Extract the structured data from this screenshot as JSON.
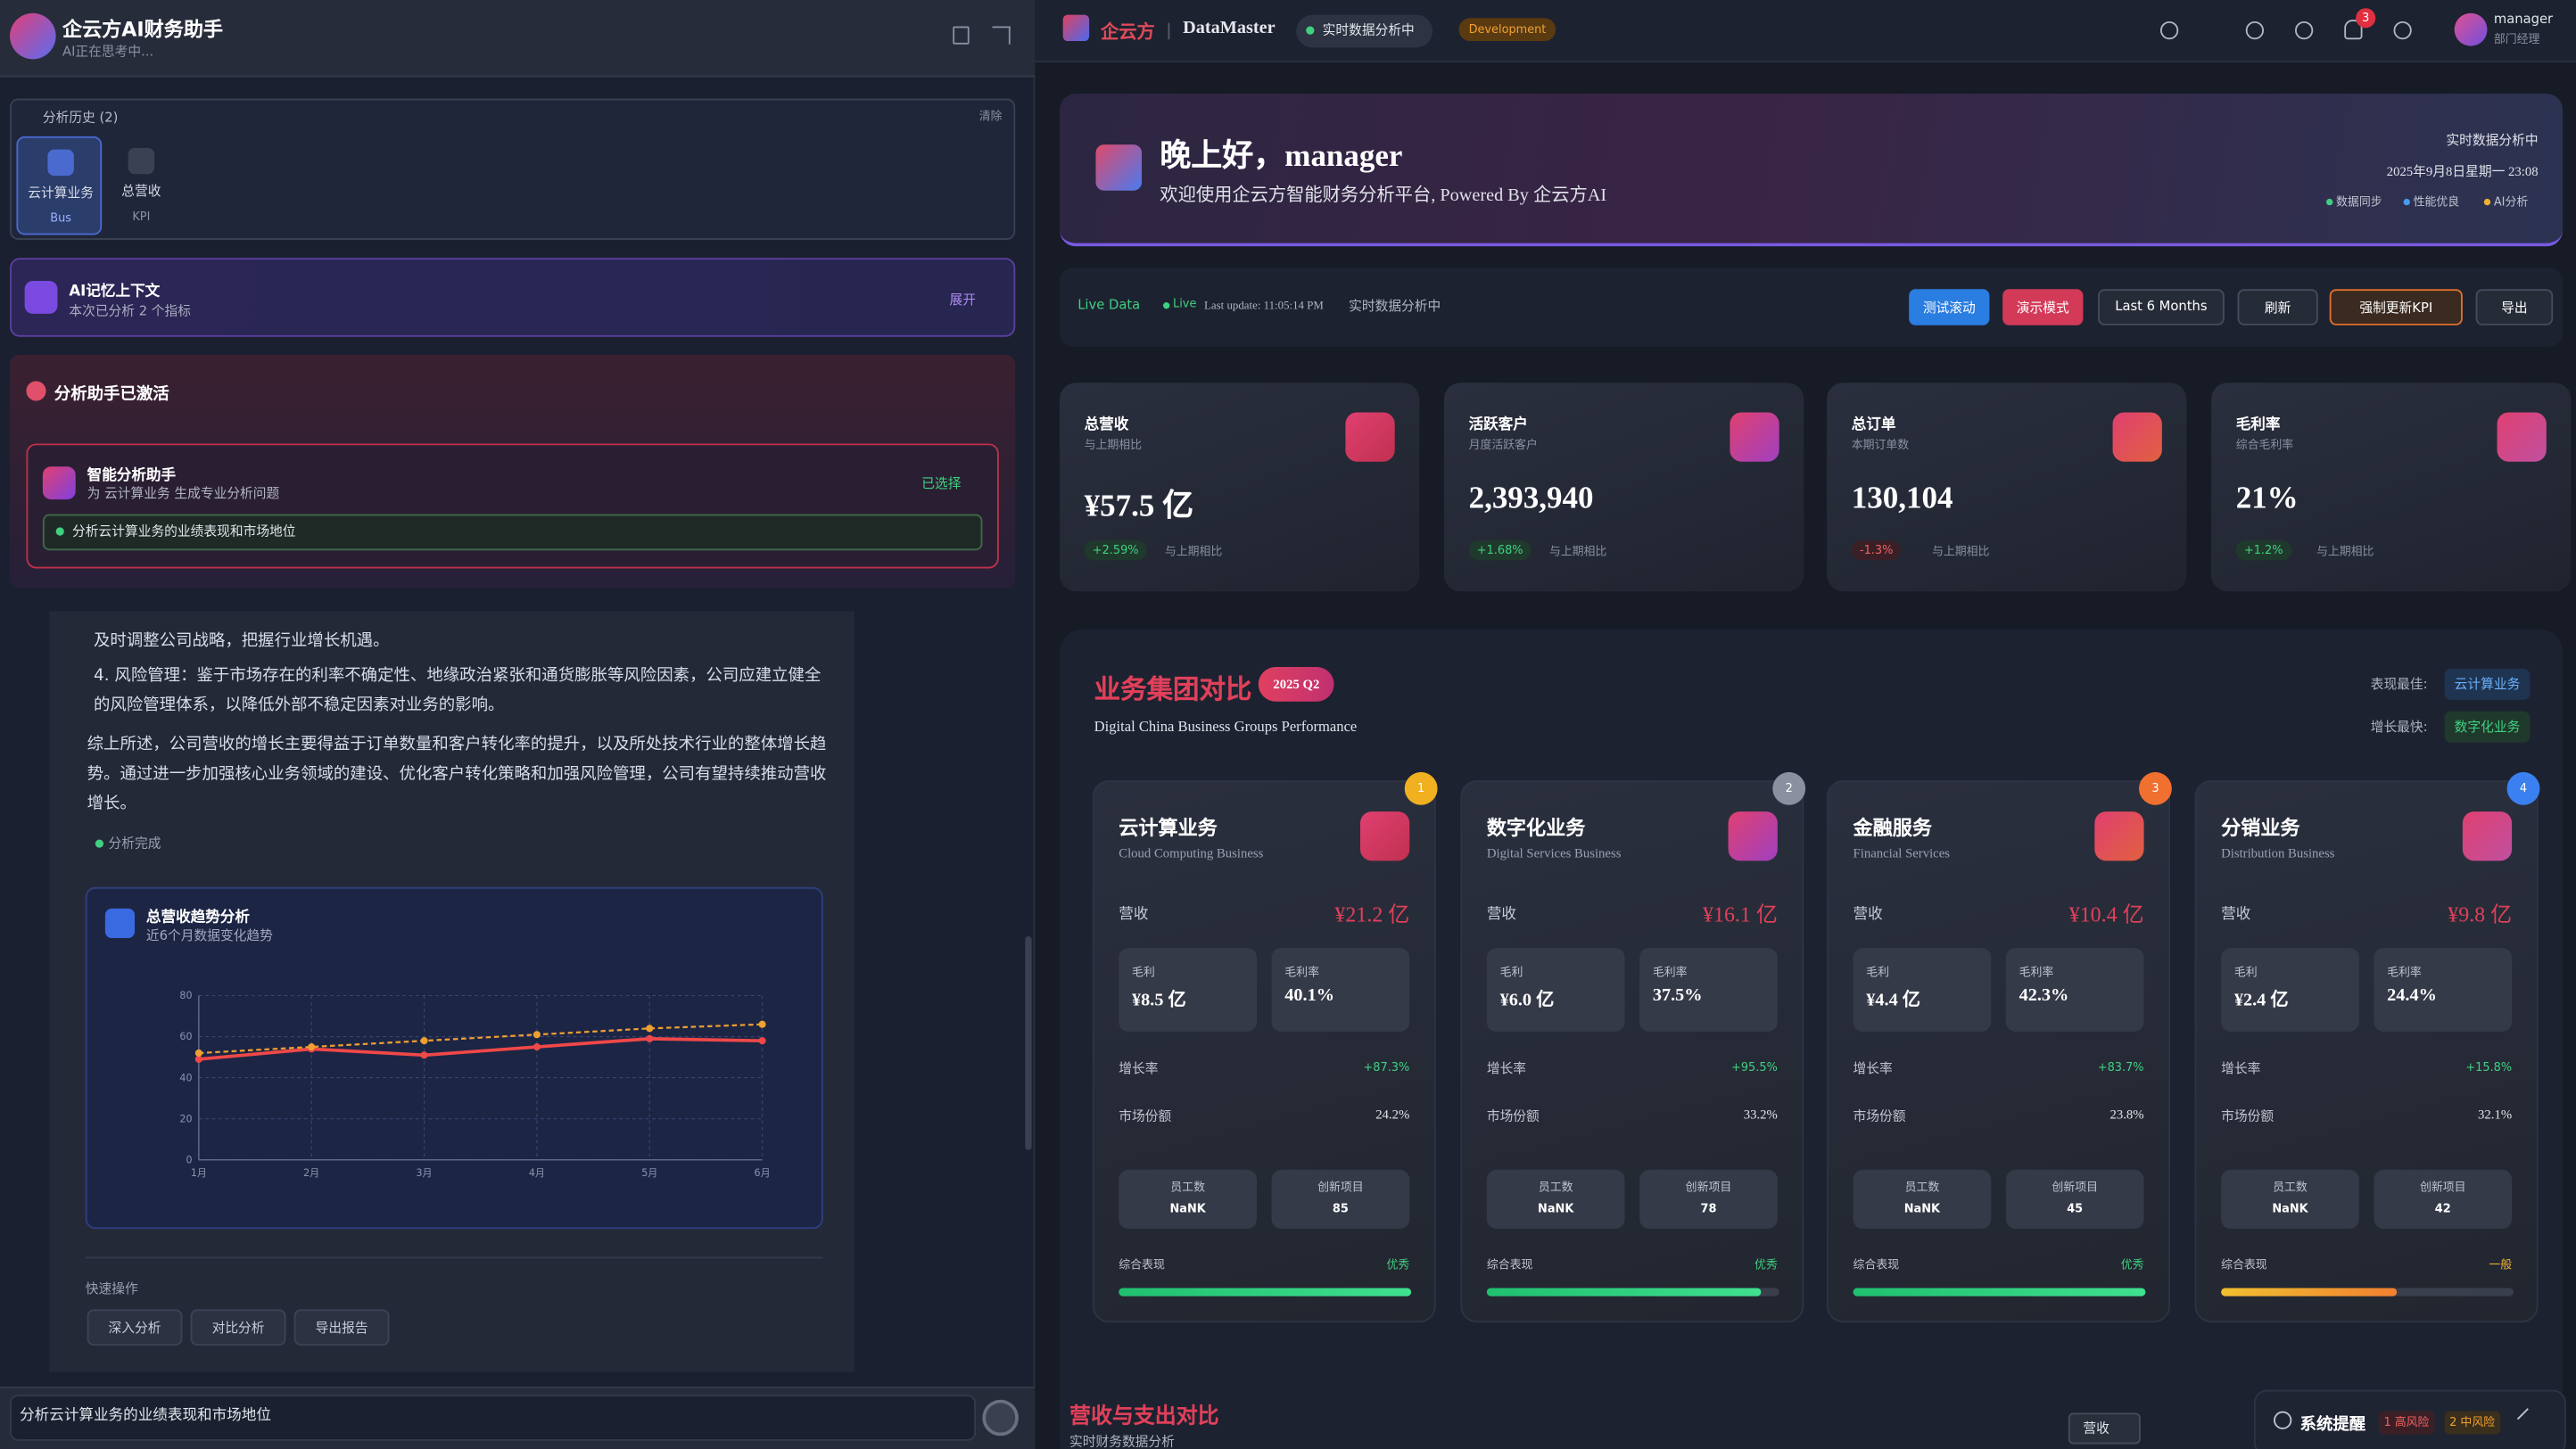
{
  "assistant": {
    "title": "企云方AI财务助手",
    "status": "AI正在思考中...",
    "history": {
      "title": "分析历史 (2)",
      "clear": "清除",
      "items": [
        {
          "label": "云计算业务",
          "tag": "Bus"
        },
        {
          "label": "总营收",
          "tag": "KPI"
        }
      ]
    },
    "memory": {
      "title": "AI记忆上下文",
      "subtitle": "本次已分析 2 个指标",
      "action": "展开"
    },
    "activated": "分析助手已激活",
    "helper": {
      "title": "智能分析助手",
      "subtitle": "为 云计算业务 生成专业分析问题",
      "state": "已选择",
      "question": "分析云计算业务的业绩表现和市场地位"
    },
    "messages": [
      "及时调整公司战略，把握行业增长机遇。",
      "4. 风险管理：鉴于市场存在的利率不确定性、地缘政治紧张和通货膨胀等风险因素，公司应建立健全的风险管理体系，以降低外部不稳定因素对业务的影响。",
      "综上所述，公司营收的增长主要得益于订单数量和客户转化率的提升，以及所处技术行业的整体增长趋势。通过进一步加强核心业务领域的建设、优化客户转化策略和加强风险管理，公司有望持续推动营收增长。"
    ],
    "done": "分析完成",
    "chart": {
      "type": "line",
      "title": "总营收趋势分析",
      "subtitle": "近6个月数据变化趋势",
      "categories": [
        "1月",
        "2月",
        "3月",
        "4月",
        "5月",
        "6月"
      ],
      "series": [
        {
          "color": "#f04848",
          "values": [
            49,
            54,
            51,
            55,
            59,
            58
          ]
        },
        {
          "color": "#f0a030",
          "dashed": true,
          "values": [
            52,
            55,
            58,
            61,
            64,
            66
          ]
        }
      ],
      "ylim": [
        0,
        80
      ],
      "yticks": [
        0,
        20,
        40,
        60,
        80
      ],
      "grid": true
    },
    "quick": {
      "title": "快速操作",
      "buttons": [
        "深入分析",
        "对比分析",
        "导出报告"
      ]
    },
    "input": "分析云计算业务的业绩表现和市场地位"
  },
  "topbar": {
    "brand": "企云方",
    "product": "DataMaster",
    "status": "实时数据分析中",
    "env": "Development",
    "notifications": 3,
    "user": "manager",
    "role": "部门经理"
  },
  "hero": {
    "greeting": "晚上好，manager",
    "subtitle": "欢迎使用企云方智能财务分析平台, Powered By 企云方AI",
    "status": "实时数据分析中",
    "datetime": "2025年9月8日星期一 23:08",
    "tags": [
      "数据同步",
      "性能优良",
      "AI分析"
    ]
  },
  "toolbar": {
    "live_data": "Live Data",
    "live": "Live",
    "last_update": "Last update: 11:05:14 PM",
    "status": "实时数据分析中",
    "buttons": [
      "测试滚动",
      "演示模式"
    ],
    "period": "Last 6 Months",
    "refresh": "刷新",
    "force": "强制更新KPI",
    "export": "导出"
  },
  "kpis": [
    {
      "title": "总营收",
      "subtitle": "与上期相比",
      "value": "¥57.5 亿",
      "change": "+2.59%",
      "note": "与上期相比"
    },
    {
      "title": "活跃客户",
      "subtitle": "月度活跃客户",
      "value": "2,393,940",
      "change": "+1.68%",
      "note": "与上期相比"
    },
    {
      "title": "总订单",
      "subtitle": "本期订单数",
      "value": "130,104",
      "change": "-1.3%",
      "note": "与上期相比"
    },
    {
      "title": "毛利率",
      "subtitle": "综合毛利率",
      "value": "21%",
      "change": "+1.2%",
      "note": "与上期相比"
    }
  ],
  "groups": {
    "title": "业务集团对比",
    "badge": "2025 Q2",
    "subtitle": "Digital China Business Groups Performance",
    "best_label": "表现最佳:",
    "best": "云计算业务",
    "fastest_label": "增长最快:",
    "fastest": "数字化业务",
    "labels": {
      "revenue": "营收",
      "gross": "毛利",
      "margin": "毛利率",
      "growth": "增长率",
      "share": "市场份额",
      "staff": "员工数",
      "projects": "创新项目",
      "overall": "综合表现"
    },
    "cards": [
      {
        "rank": 1,
        "name": "云计算业务",
        "name_en": "Cloud Computing Business",
        "revenue": "¥21.2 亿",
        "gross": "¥8.5 亿",
        "margin": "40.1%",
        "growth": "+87.3%",
        "share": "24.2%",
        "staff": "NaNK",
        "projects": 85,
        "rating": "优秀",
        "progress": 100
      },
      {
        "rank": 2,
        "name": "数字化业务",
        "name_en": "Digital Services Business",
        "revenue": "¥16.1 亿",
        "gross": "¥6.0 亿",
        "margin": "37.5%",
        "growth": "+95.5%",
        "share": "33.2%",
        "staff": "NaNK",
        "projects": 78,
        "rating": "优秀",
        "progress": 94
      },
      {
        "rank": 3,
        "name": "金融服务",
        "name_en": "Financial Services",
        "revenue": "¥10.4 亿",
        "gross": "¥4.4 亿",
        "margin": "42.3%",
        "growth": "+83.7%",
        "share": "23.8%",
        "staff": "NaNK",
        "projects": 45,
        "rating": "优秀",
        "progress": 100
      },
      {
        "rank": 4,
        "name": "分销业务",
        "name_en": "Distribution Business",
        "revenue": "¥9.8 亿",
        "gross": "¥2.4 亿",
        "margin": "24.4%",
        "growth": "+15.8%",
        "share": "32.1%",
        "staff": "NaNK",
        "projects": 42,
        "rating": "一般",
        "progress": 60
      }
    ]
  },
  "compare": {
    "title": "营收与支出对比",
    "subtitle": "实时财务数据分析",
    "select": "营收"
  },
  "alert": {
    "title": "系统提醒",
    "high": "1 高风险",
    "medium": "2 中风险"
  }
}
